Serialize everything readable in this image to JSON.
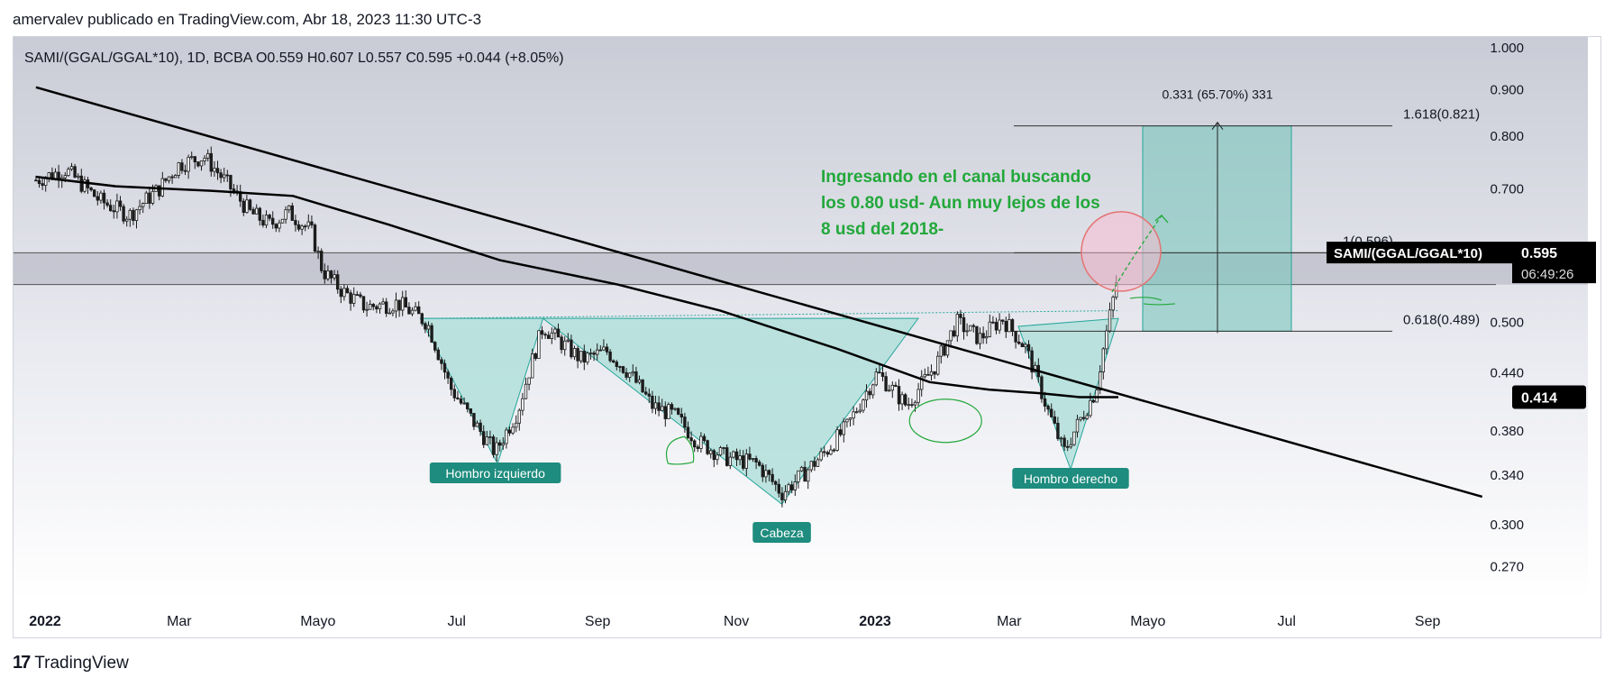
{
  "header": {
    "publisher_line": "amervalev publicado en TradingView.com, Abr 18, 2023 11:30 UTC-3"
  },
  "footer": {
    "brand": "TradingView",
    "logo_icon": "tradingview-logo-icon"
  },
  "colors": {
    "pattern_fill": "#b2dfdb",
    "pattern_stroke": "#26a69a",
    "label_bg": "#1e8c7e",
    "annotation_green": "#22a83a",
    "circle_fill": "#f8bbd0",
    "circle_stroke": "#e57373",
    "trendline": "#000000",
    "candle": "#1c1c1c"
  },
  "chart_data": {
    "type": "candlestick",
    "symbol_line": "SAMI/(GGAL/GGAL*10), 1D, BCBA",
    "ohlc": {
      "open_label": "O",
      "open": "0.559",
      "high_label": "H",
      "high": "0.607",
      "low_label": "L",
      "low": "0.557",
      "close_label": "C",
      "close": "0.595",
      "change": "+0.044 (+8.05%)"
    },
    "price_axis": {
      "ticks": [
        "1.000",
        "0.900",
        "0.800",
        "0.700",
        "0.500",
        "0.440",
        "0.380",
        "0.340",
        "0.300",
        "0.270"
      ],
      "scale": "log",
      "ylim": [
        0.25,
        1.05
      ]
    },
    "time_axis": {
      "ticks": [
        "2022",
        "Mar",
        "Mayo",
        "Jul",
        "Sep",
        "Nov",
        "2023",
        "Mar",
        "Mayo",
        "Jul",
        "Sep"
      ],
      "bold_ticks": [
        "2022",
        "2023"
      ]
    },
    "last_price": {
      "symbol_tag": "SAMI/(GGAL/GGAL*10)",
      "value": "0.595",
      "countdown": "06:49:26"
    },
    "ma_price_label": "0.414",
    "patterns": [
      {
        "label": "Hombro izquierdo",
        "icon": "label-icon"
      },
      {
        "label": "Cabeza",
        "icon": "label-icon"
      },
      {
        "label": "Hombro derecho",
        "icon": "label-icon"
      }
    ],
    "fib_levels": [
      {
        "label": "1.618(0.821)",
        "price": 0.821
      },
      {
        "label": "1(0.596)",
        "price": 0.596
      },
      {
        "label": "0.618(0.489)",
        "price": 0.489
      }
    ],
    "measure_label": "0.331 (65.70%) 331",
    "annotation_text": [
      "Ingresando en el canal buscando",
      "los 0.80 usd- Aun muy lejos de los",
      "8 usd del 2018-"
    ],
    "price_path": [
      [
        "2021-12-28",
        0.716
      ],
      [
        "2022-01-10",
        0.735
      ],
      [
        "2022-01-25",
        0.68
      ],
      [
        "2022-02-07",
        0.655
      ],
      [
        "2022-02-20",
        0.7
      ],
      [
        "2022-03-01",
        0.745
      ],
      [
        "2022-03-12",
        0.76
      ],
      [
        "2022-03-22",
        0.71
      ],
      [
        "2022-04-01",
        0.66
      ],
      [
        "2022-04-10",
        0.64
      ],
      [
        "2022-04-18",
        0.66
      ],
      [
        "2022-04-28",
        0.63
      ],
      [
        "2022-05-03",
        0.57
      ],
      [
        "2022-05-12",
        0.54
      ],
      [
        "2022-05-22",
        0.52
      ],
      [
        "2022-06-05",
        0.525
      ],
      [
        "2022-06-18",
        0.5
      ],
      [
        "2022-06-28",
        0.425
      ],
      [
        "2022-07-08",
        0.39
      ],
      [
        "2022-07-18",
        0.36
      ],
      [
        "2022-07-28",
        0.4
      ],
      [
        "2022-08-08",
        0.495
      ],
      [
        "2022-08-16",
        0.475
      ],
      [
        "2022-08-25",
        0.455
      ],
      [
        "2022-09-05",
        0.465
      ],
      [
        "2022-09-15",
        0.44
      ],
      [
        "2022-09-25",
        0.405
      ],
      [
        "2022-10-05",
        0.395
      ],
      [
        "2022-10-15",
        0.37
      ],
      [
        "2022-10-28",
        0.355
      ],
      [
        "2022-11-10",
        0.35
      ],
      [
        "2022-11-21",
        0.325
      ],
      [
        "2022-11-30",
        0.34
      ],
      [
        "2022-12-10",
        0.36
      ],
      [
        "2022-12-20",
        0.385
      ],
      [
        "2023-01-02",
        0.44
      ],
      [
        "2023-01-15",
        0.405
      ],
      [
        "2023-01-28",
        0.45
      ],
      [
        "2023-02-06",
        0.5
      ],
      [
        "2023-02-16",
        0.48
      ],
      [
        "2023-02-26",
        0.505
      ],
      [
        "2023-03-08",
        0.47
      ],
      [
        "2023-03-18",
        0.4
      ],
      [
        "2023-03-25",
        0.36
      ],
      [
        "2023-04-01",
        0.39
      ],
      [
        "2023-04-08",
        0.42
      ],
      [
        "2023-04-13",
        0.49
      ],
      [
        "2023-04-17",
        0.549
      ],
      [
        "2023-04-18",
        0.595
      ]
    ],
    "sma_path": [
      [
        "2021-12-28",
        0.722
      ],
      [
        "2022-02-01",
        0.705
      ],
      [
        "2022-03-15",
        0.697
      ],
      [
        "2022-04-20",
        0.688
      ],
      [
        "2022-06-01",
        0.64
      ],
      [
        "2022-07-20",
        0.585
      ],
      [
        "2022-09-10",
        0.55
      ],
      [
        "2022-10-25",
        0.515
      ],
      [
        "2022-12-15",
        0.468
      ],
      [
        "2023-01-25",
        0.43
      ],
      [
        "2023-02-20",
        0.422
      ],
      [
        "2023-03-15",
        0.418
      ],
      [
        "2023-04-01",
        0.414
      ],
      [
        "2023-04-18",
        0.414
      ]
    ],
    "trendline": [
      [
        "2021-12-28",
        0.905
      ],
      [
        "2023-09-25",
        0.322
      ]
    ]
  }
}
